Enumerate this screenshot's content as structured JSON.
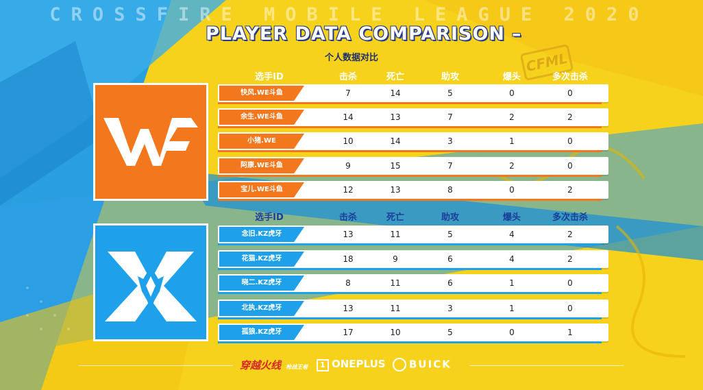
{
  "banner": "CROSSFIRE MOBILE LEAGUE 2020",
  "title": "PLAYER DATA COMPARISON",
  "title_suffix": "–",
  "subtitle": "个人数据对比",
  "badge": "CFML",
  "columns": [
    "选手ID",
    "击杀",
    "死亡",
    "助攻",
    "爆头",
    "多次击杀"
  ],
  "colors": {
    "orange": "#f3771d",
    "blue": "#1ea0ea",
    "yellow": "#f7d21c",
    "navy": "#233a8a"
  },
  "teams": [
    {
      "logo": "WE",
      "logo_icon": "we-team-logo-icon",
      "players": [
        {
          "id": "快风.WE斗鱼",
          "kills": 7,
          "deaths": 14,
          "assists": 5,
          "headshots": 0,
          "multikills": 0
        },
        {
          "id": "余生.WE斗鱼",
          "kills": 14,
          "deaths": 13,
          "assists": 7,
          "headshots": 2,
          "multikills": 2
        },
        {
          "id": "小猪.WE",
          "kills": 10,
          "deaths": 14,
          "assists": 3,
          "headshots": 1,
          "multikills": 0
        },
        {
          "id": "阿康.WE斗鱼",
          "kills": 9,
          "deaths": 15,
          "assists": 7,
          "headshots": 2,
          "multikills": 0
        },
        {
          "id": "宝儿.WE斗鱼",
          "kills": 12,
          "deaths": 13,
          "assists": 8,
          "headshots": 0,
          "multikills": 2
        }
      ]
    },
    {
      "logo": "KZ",
      "logo_icon": "kz-team-logo-icon",
      "players": [
        {
          "id": "念旧.KZ虎牙",
          "kills": 13,
          "deaths": 11,
          "assists": 5,
          "headshots": 4,
          "multikills": 2
        },
        {
          "id": "花猫.KZ虎牙",
          "kills": 18,
          "deaths": 9,
          "assists": 6,
          "headshots": 4,
          "multikills": 2
        },
        {
          "id": "晓二.KZ虎牙",
          "kills": 8,
          "deaths": 11,
          "assists": 6,
          "headshots": 1,
          "multikills": 0
        },
        {
          "id": "北执.KZ虎牙",
          "kills": 13,
          "deaths": 11,
          "assists": 3,
          "headshots": 1,
          "multikills": 0
        },
        {
          "id": "孤狼.KZ虎牙",
          "kills": 17,
          "deaths": 10,
          "assists": 5,
          "headshots": 0,
          "multikills": 1
        }
      ]
    }
  ],
  "sponsors": {
    "cf": "穿越火线",
    "cf_sub": "枪战王者",
    "oneplus": "ONEPLUS",
    "buick": "BUICK"
  }
}
